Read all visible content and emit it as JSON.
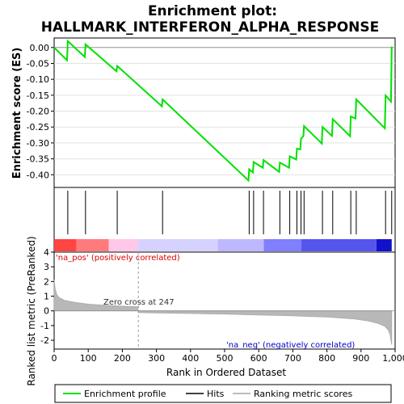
{
  "chart_data": {
    "type": "line",
    "title_line1": "Enrichment plot:",
    "title_line2": "HALLMARK_INTERFERON_ALPHA_RESPONSE",
    "top_panel": {
      "ylabel": "Enrichment score (ES)",
      "ylim": [
        -0.44,
        0.03
      ],
      "yticks": [
        0.0,
        -0.05,
        -0.1,
        -0.15,
        -0.2,
        -0.25,
        -0.3,
        -0.35,
        -0.4
      ],
      "ytick_labels": [
        "0.00",
        "-0.05",
        "-0.10",
        "-0.15",
        "-0.20",
        "-0.25",
        "-0.30",
        "-0.35",
        "-0.40"
      ],
      "series": [
        {
          "name": "Enrichment profile",
          "color": "#00e000",
          "x": [
            0,
            38,
            40,
            90,
            92,
            183,
            185,
            316,
            318,
            570,
            572,
            583,
            585,
            612,
            614,
            660,
            662,
            689,
            691,
            710,
            712,
            722,
            724,
            731,
            733,
            785,
            787,
            815,
            817,
            868,
            870,
            884,
            886,
            970,
            972,
            988,
            990
          ],
          "y": [
            0.0,
            -0.04,
            0.02,
            -0.03,
            0.01,
            -0.075,
            -0.058,
            -0.185,
            -0.163,
            -0.418,
            -0.383,
            -0.393,
            -0.36,
            -0.378,
            -0.354,
            -0.391,
            -0.362,
            -0.378,
            -0.342,
            -0.352,
            -0.318,
            -0.32,
            -0.287,
            -0.278,
            -0.247,
            -0.302,
            -0.25,
            -0.278,
            -0.225,
            -0.279,
            -0.217,
            -0.223,
            -0.163,
            -0.254,
            -0.151,
            -0.17,
            0.003
          ]
        }
      ]
    },
    "hits": {
      "name": "Hits",
      "positions": [
        40,
        92,
        185,
        318,
        572,
        585,
        614,
        662,
        691,
        712,
        724,
        733,
        787,
        817,
        870,
        886,
        972,
        990
      ]
    },
    "bottom_panel": {
      "xlabel": "Rank in Ordered Dataset",
      "ylabel": "Ranked list metric (PreRanked)",
      "ylim": [
        -2.6,
        4.0
      ],
      "yticks": [
        4,
        3,
        2,
        1,
        0,
        -1,
        -2
      ],
      "xlim": [
        0,
        1000
      ],
      "xticks": [
        0,
        100,
        200,
        300,
        400,
        500,
        600,
        700,
        800,
        900,
        1000
      ],
      "xtick_labels": [
        "0",
        "100",
        "200",
        "300",
        "400",
        "500",
        "600",
        "700",
        "800",
        "900",
        "1,000"
      ],
      "metric_profile": {
        "x": [
          0,
          3,
          8,
          15,
          30,
          60,
          100,
          150,
          200,
          246,
          247,
          300,
          400,
          500,
          600,
          700,
          800,
          880,
          920,
          950,
          970,
          980,
          985,
          990
        ],
        "y": [
          2.1,
          1.5,
          1.1,
          0.9,
          0.72,
          0.58,
          0.46,
          0.38,
          0.32,
          0.28,
          -0.12,
          -0.14,
          -0.18,
          -0.22,
          -0.28,
          -0.34,
          -0.42,
          -0.55,
          -0.68,
          -0.85,
          -1.05,
          -1.3,
          -1.6,
          -2.3
        ]
      },
      "zero_cross_label": "Zero cross at 247",
      "zero_cross_rank": 247,
      "pos_label": "'na_pos' (positively correlated)",
      "neg_label": "'na_neg' (negatively correlated)",
      "pos_color": "#ff0000",
      "neg_color": "#0000ff"
    },
    "colorbar_segments": [
      {
        "start": 0,
        "end": 65,
        "color": "#ff4444"
      },
      {
        "start": 65,
        "end": 160,
        "color": "#ff7b7b"
      },
      {
        "start": 160,
        "end": 245,
        "color": "#ffc8e8"
      },
      {
        "start": 245,
        "end": 480,
        "color": "#d6d2ff"
      },
      {
        "start": 480,
        "end": 615,
        "color": "#bdb8ff"
      },
      {
        "start": 615,
        "end": 725,
        "color": "#7f7fff"
      },
      {
        "start": 725,
        "end": 945,
        "color": "#5555ee"
      },
      {
        "start": 945,
        "end": 990,
        "color": "#1111cc"
      }
    ],
    "legend": [
      {
        "label": "Enrichment profile",
        "color": "#00e000"
      },
      {
        "label": "Hits",
        "color": "#000000"
      },
      {
        "label": "Ranking metric scores",
        "color": "#bbbbbb"
      }
    ]
  }
}
